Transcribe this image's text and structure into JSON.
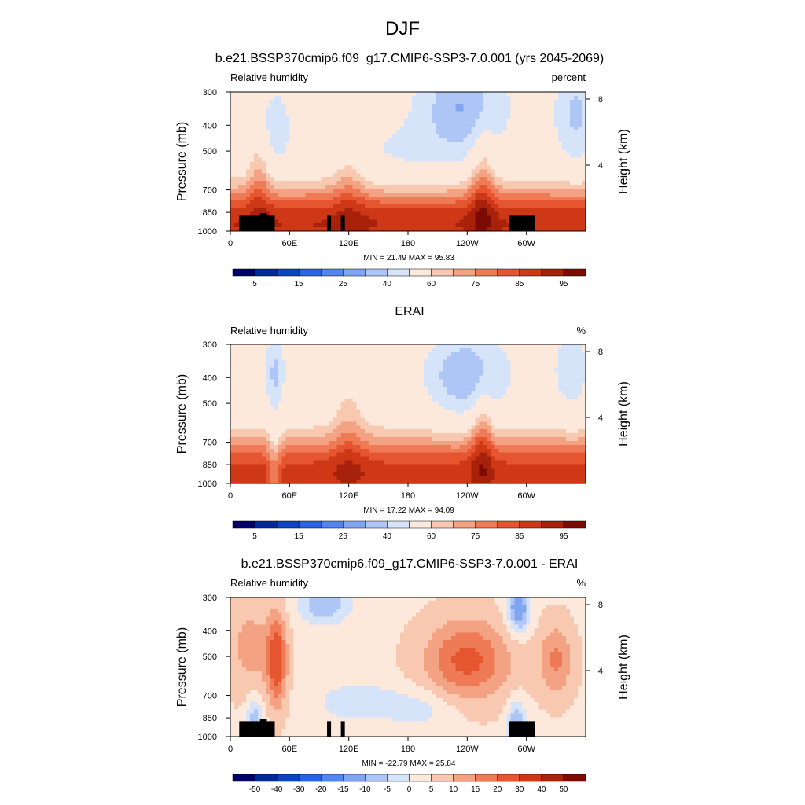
{
  "figure": {
    "title": "DJF"
  },
  "chart_data": [
    {
      "type": "heatmap",
      "title": "b.e21.BSSP370cmip6.f09_g17.CMIP6-SSP3-7.0.001 (yrs 2045-2069)",
      "left_label": "Relative humidity",
      "right_label": "percent",
      "ylabel": "Pressure (mb)",
      "ylabel_right": "Height (km)",
      "x_ticks": [
        "0",
        "60E",
        "120E",
        "180",
        "120W",
        "60W"
      ],
      "x_tick_values": [
        0,
        60,
        120,
        180,
        240,
        300
      ],
      "xlim": [
        0,
        360
      ],
      "y_ticks": [
        "300",
        "400",
        "500",
        "700",
        "850",
        "1000"
      ],
      "y_tick_values": [
        300,
        400,
        500,
        700,
        850,
        1000
      ],
      "ylim": [
        1000,
        300
      ],
      "y_scale": "log",
      "height_ticks": [
        "8",
        "4"
      ],
      "height_tick_values": [
        8,
        4
      ],
      "stats": "MIN =  21.49  MAX =  95.83",
      "min": 21.49,
      "max": 95.83,
      "colorbar_labels": [
        "5",
        "15",
        "25",
        "40",
        "60",
        "75",
        "85",
        "95"
      ],
      "levels": [
        5,
        10,
        15,
        20,
        25,
        30,
        40,
        50,
        60,
        65,
        70,
        75,
        80,
        85,
        90,
        95
      ],
      "palette": "blue-white-red",
      "topography": true
    },
    {
      "type": "heatmap",
      "title": "ERAI",
      "left_label": "Relative humidity",
      "right_label": "%",
      "ylabel": "Pressure (mb)",
      "ylabel_right": "Height (km)",
      "x_ticks": [
        "0",
        "60E",
        "120E",
        "180",
        "120W",
        "60W"
      ],
      "x_tick_values": [
        0,
        60,
        120,
        180,
        240,
        300
      ],
      "xlim": [
        0,
        360
      ],
      "y_ticks": [
        "300",
        "400",
        "500",
        "700",
        "850",
        "1000"
      ],
      "y_tick_values": [
        300,
        400,
        500,
        700,
        850,
        1000
      ],
      "ylim": [
        1000,
        300
      ],
      "y_scale": "log",
      "height_ticks": [
        "8",
        "4"
      ],
      "height_tick_values": [
        8,
        4
      ],
      "stats": "MIN =  17.22  MAX =  94.09",
      "min": 17.22,
      "max": 94.09,
      "colorbar_labels": [
        "5",
        "15",
        "25",
        "40",
        "60",
        "75",
        "85",
        "95"
      ],
      "levels": [
        5,
        10,
        15,
        20,
        25,
        30,
        40,
        50,
        60,
        65,
        70,
        75,
        80,
        85,
        90,
        95
      ],
      "palette": "blue-white-red",
      "topography": false
    },
    {
      "type": "heatmap",
      "title": "b.e21.BSSP370cmip6.f09_g17.CMIP6-SSP3-7.0.001 - ERAI",
      "left_label": "Relative humidity",
      "right_label": "%",
      "ylabel": "Pressure (mb)",
      "ylabel_right": "Height (km)",
      "x_ticks": [
        "0",
        "60E",
        "120E",
        "180",
        "120W",
        "60W"
      ],
      "x_tick_values": [
        0,
        60,
        120,
        180,
        240,
        300
      ],
      "xlim": [
        0,
        360
      ],
      "y_ticks": [
        "300",
        "400",
        "500",
        "700",
        "850",
        "1000"
      ],
      "y_tick_values": [
        300,
        400,
        500,
        700,
        850,
        1000
      ],
      "ylim": [
        1000,
        300
      ],
      "y_scale": "log",
      "height_ticks": [
        "8",
        "4"
      ],
      "height_tick_values": [
        8,
        4
      ],
      "stats": "MIN = -22.79  MAX =  25.84",
      "min": -22.79,
      "max": 25.84,
      "colorbar_labels": [
        "-50",
        "-40",
        "-30",
        "-20",
        "-15",
        "-10",
        "-5",
        "0",
        "5",
        "10",
        "15",
        "20",
        "30",
        "40",
        "50"
      ],
      "levels": [
        -50,
        -40,
        -30,
        -20,
        -15,
        -10,
        -5,
        0,
        5,
        10,
        15,
        20,
        30,
        40,
        50
      ],
      "palette": "blue-white-red",
      "topography": true
    }
  ]
}
